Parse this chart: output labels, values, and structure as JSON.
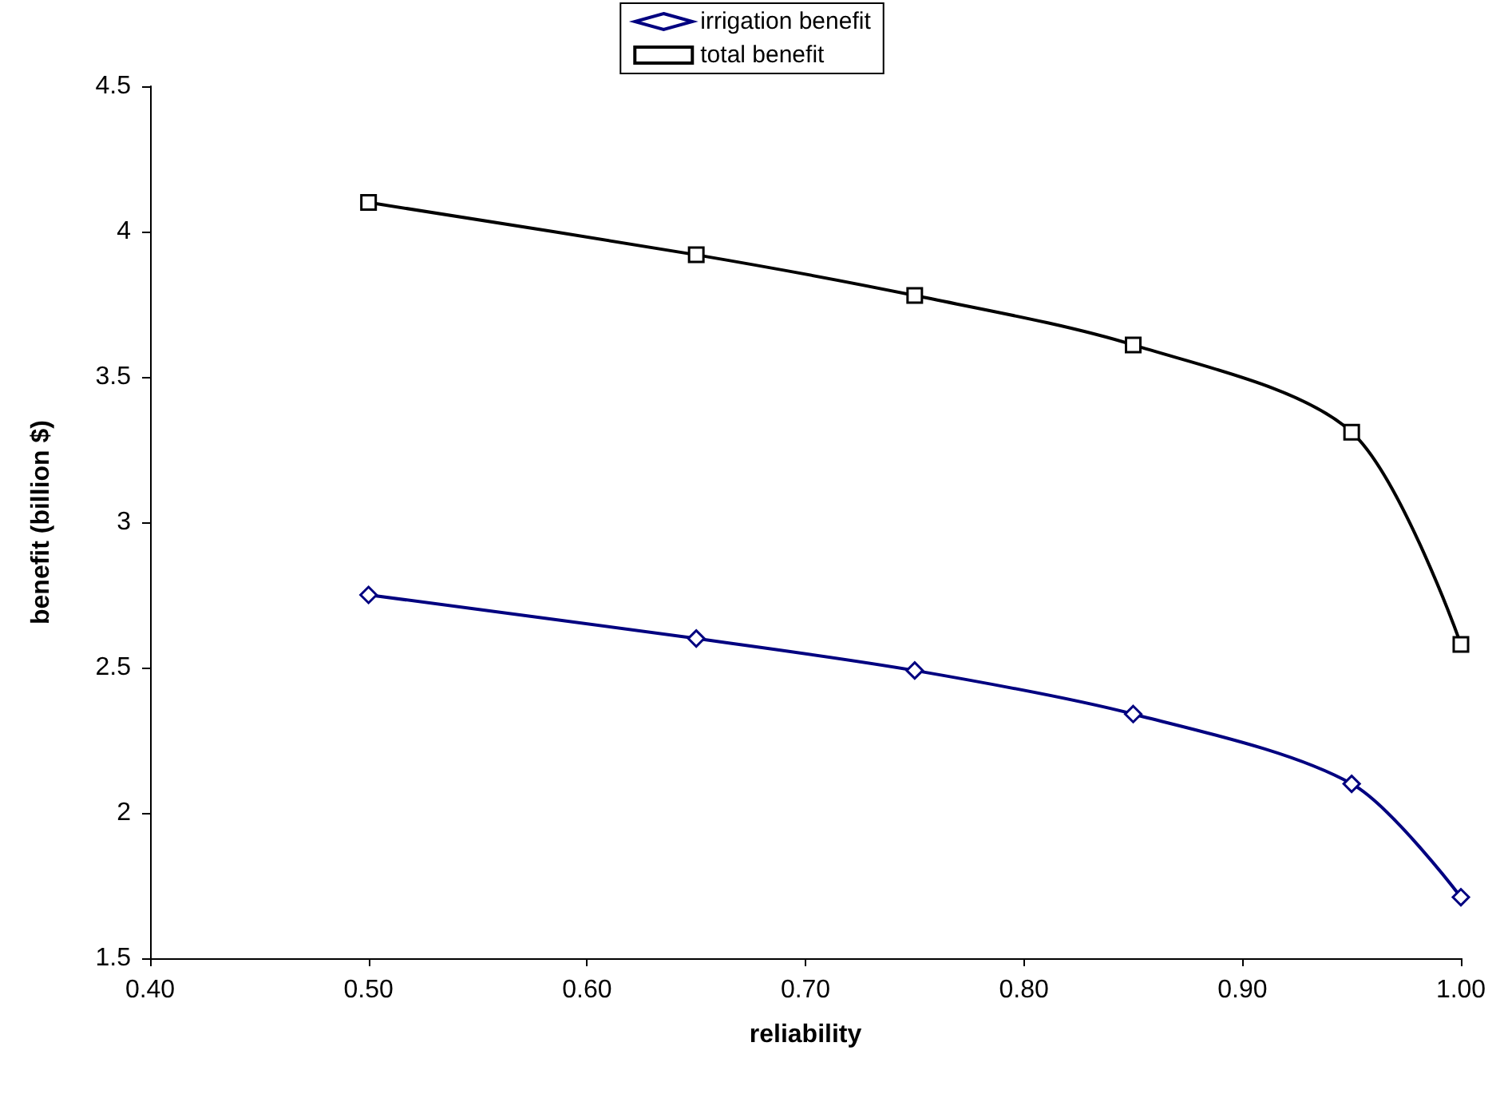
{
  "chart_data": {
    "type": "line",
    "xlabel": "reliability",
    "ylabel": "benefit (billion $)",
    "xlim": [
      0.4,
      1.0
    ],
    "xticks": [
      {
        "value": 0.4,
        "label": "0.40"
      },
      {
        "value": 0.5,
        "label": "0.50"
      },
      {
        "value": 0.6,
        "label": "0.60"
      },
      {
        "value": 0.7,
        "label": "0.70"
      },
      {
        "value": 0.8,
        "label": "0.80"
      },
      {
        "value": 0.9,
        "label": "0.90"
      },
      {
        "value": 1.0,
        "label": "1.00"
      }
    ],
    "ylim": [
      1.5,
      4.5
    ],
    "yticks": [
      1.5,
      2,
      2.5,
      3,
      3.5,
      4,
      4.5
    ],
    "grid": false,
    "legend": "top",
    "line_style": "solid",
    "x": [
      0.5,
      0.65,
      0.75,
      0.85,
      0.95,
      1.0
    ],
    "series": [
      {
        "name": "irrigation benefit",
        "color": "#000080",
        "marker": "diamond",
        "values": [
          2.75,
          2.6,
          2.49,
          2.34,
          2.1,
          1.71
        ]
      },
      {
        "name": "total benefit",
        "color": "#000000",
        "marker": "square",
        "values": [
          4.1,
          3.92,
          3.78,
          3.61,
          3.31,
          2.58
        ]
      }
    ]
  }
}
